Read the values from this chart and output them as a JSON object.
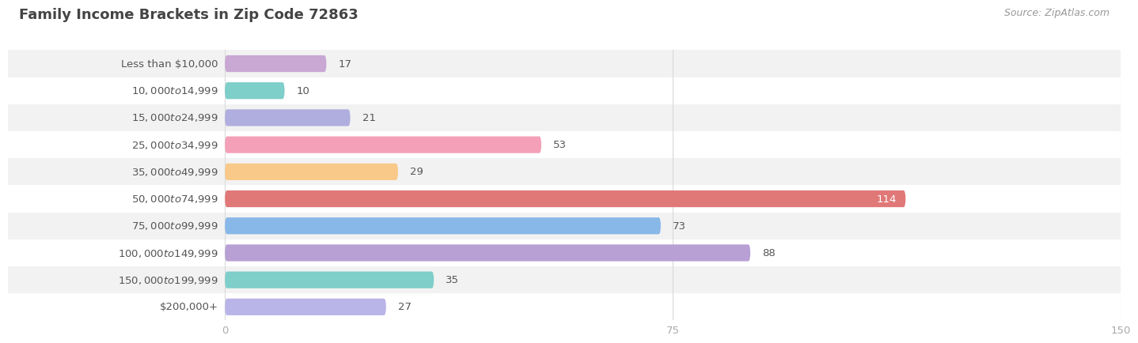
{
  "title": "Family Income Brackets in Zip Code 72863",
  "source": "Source: ZipAtlas.com",
  "categories": [
    "Less than $10,000",
    "$10,000 to $14,999",
    "$15,000 to $24,999",
    "$25,000 to $34,999",
    "$35,000 to $49,999",
    "$50,000 to $74,999",
    "$75,000 to $99,999",
    "$100,000 to $149,999",
    "$150,000 to $199,999",
    "$200,000+"
  ],
  "values": [
    17,
    10,
    21,
    53,
    29,
    114,
    73,
    88,
    35,
    27
  ],
  "bar_colors": [
    "#c9a8d4",
    "#7ececa",
    "#b0aede",
    "#f4a0b8",
    "#f9c98a",
    "#e07878",
    "#88b8e8",
    "#b89fd4",
    "#7ececa",
    "#bab5e8"
  ],
  "xlim": [
    0,
    150
  ],
  "xticks": [
    0,
    75,
    150
  ],
  "title_fontsize": 13,
  "label_fontsize": 9.5,
  "value_fontsize": 9.5,
  "bar_height": 0.62,
  "row_even_color": "#f2f2f2",
  "row_odd_color": "#ffffff",
  "grid_color": "#d8d8d8",
  "label_color": "#555555",
  "value_color_outside": "#555555",
  "value_color_inside": "#ffffff",
  "title_color": "#444444",
  "source_color": "#999999",
  "tick_color": "#aaaaaa"
}
